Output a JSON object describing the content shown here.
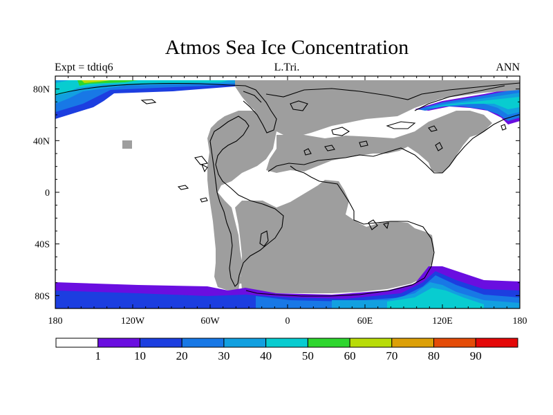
{
  "title": "Atmos Sea Ice Concentration",
  "subtitle_left": "Expt = tdtiq6",
  "subtitle_center": "L.Tri.",
  "subtitle_right": "ANN",
  "land_color": "#9e9e9e",
  "ocean_color": "#ffffff",
  "axes": {
    "x_ticks": [
      {
        "value": -180,
        "label": "180"
      },
      {
        "value": -120,
        "label": "120W"
      },
      {
        "value": -60,
        "label": "60W"
      },
      {
        "value": 0,
        "label": "0"
      },
      {
        "value": 60,
        "label": "60E"
      },
      {
        "value": 120,
        "label": "120E"
      },
      {
        "value": 180,
        "label": "180"
      }
    ],
    "y_ticks": [
      {
        "value": 80,
        "label": "80N"
      },
      {
        "value": 40,
        "label": "40N"
      },
      {
        "value": 0,
        "label": "0"
      },
      {
        "value": -40,
        "label": "40S"
      },
      {
        "value": -80,
        "label": "80S"
      }
    ]
  },
  "colorbar": {
    "colors": [
      "#ffffff",
      "#6a0ee0",
      "#1c3ee0",
      "#1878e6",
      "#12a0e0",
      "#08ccd0",
      "#2ed62e",
      "#b8dc08",
      "#dca008",
      "#e44c08",
      "#e40808"
    ],
    "labels": [
      "1",
      "10",
      "20",
      "30",
      "40",
      "50",
      "60",
      "70",
      "80",
      "90"
    ]
  }
}
